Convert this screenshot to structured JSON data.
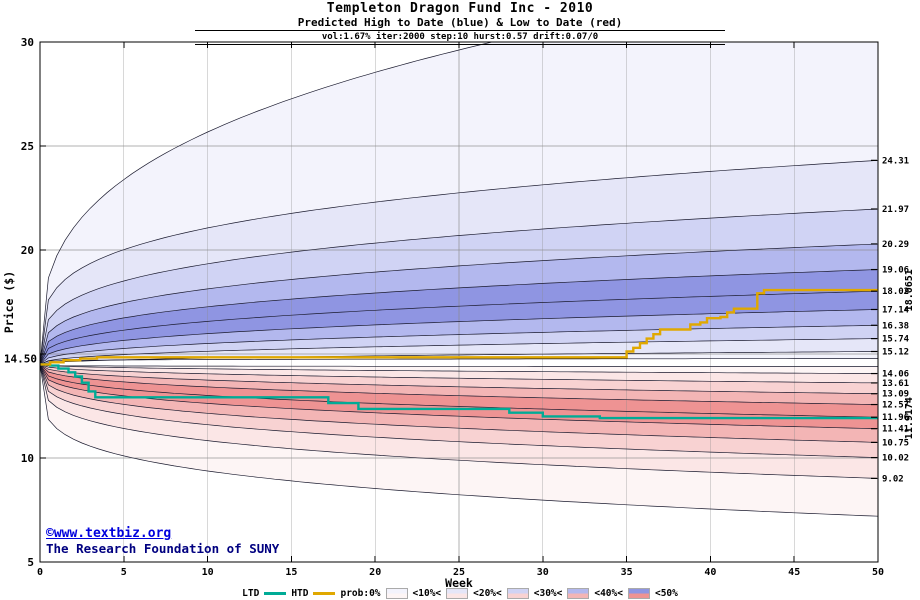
{
  "header": {
    "title": "Templeton Dragon Fund Inc - 2010",
    "subtitle": "Predicted High to Date (blue) &  Low to Date (red)",
    "params": "vol:1.67% iter:2000 step:10 hurst:0.57 drift:0.07/0"
  },
  "watermark": {
    "line1": "©www.textbiz.org",
    "line2": "The Research Foundation of SUNY"
  },
  "legend": {
    "series": [
      {
        "label": "LTD",
        "color": "#00ab96"
      },
      {
        "label": "HTD",
        "color": "#e0a800"
      }
    ],
    "prob_labels": [
      "prob:0%",
      "<10%<",
      "<20%<",
      "<30%<",
      "<40%<",
      "<50%"
    ]
  },
  "chart_data": {
    "type": "area",
    "title": "Templeton Dragon Fund Inc - 2010",
    "subtitle": "Predicted High to Date (blue) &  Low to Date (red)",
    "params_line": "vol:1.67% iter:2000 step:10 hurst:0.57 drift:0.07/0",
    "xlabel": "Week",
    "ylabel": "Price ($)",
    "xlim": [
      0,
      50
    ],
    "ylim": [
      5,
      30
    ],
    "x_tick_labels": [
      0,
      5,
      10,
      15,
      20,
      25,
      30,
      35,
      40,
      45,
      50
    ],
    "x_gridlines": [
      5,
      10,
      15,
      20,
      25,
      30,
      35,
      40,
      45
    ],
    "y_tick_labels": [
      30,
      25,
      20,
      10,
      5
    ],
    "y_gridlines": [
      10,
      15,
      20,
      25
    ],
    "start_price": 14.5,
    "start_label": "14.50",
    "band_colors_blue": [
      "#f3f3fc",
      "#e5e6f8",
      "#d0d3f4",
      "#b3b8ee",
      "#8f95e2"
    ],
    "band_colors_red": [
      "#fdf5f5",
      "#fbe6e6",
      "#f8d2d2",
      "#f3b5b5",
      "#ee9393"
    ],
    "line_color": "#1a1a2e",
    "high_fan": {
      "side": "high-to-date",
      "ends": [
        14.78,
        15.12,
        15.74,
        16.38,
        17.14,
        18.02,
        19.06,
        20.29,
        21.97,
        24.31,
        33.5
      ],
      "exps": [
        0.12,
        0.45,
        0.42,
        0.39,
        0.36,
        0.33,
        0.31,
        0.29,
        0.27,
        0.25,
        0.33
      ],
      "labels": [
        "15.12",
        "15.74",
        "16.38",
        "17.14",
        "18.02",
        "19.06",
        "20.29",
        "21.97",
        "24.31"
      ]
    },
    "low_fan": {
      "side": "low-to-date",
      "ends": [
        14.4,
        14.06,
        13.61,
        13.09,
        12.57,
        11.96,
        11.41,
        10.75,
        10.02,
        9.02,
        7.2
      ],
      "exps": [
        0.12,
        0.45,
        0.42,
        0.39,
        0.36,
        0.33,
        0.31,
        0.29,
        0.27,
        0.25,
        0.22
      ],
      "labels": [
        "14.06",
        "13.61",
        "13.09",
        "12.57",
        "11.96",
        "11.41",
        "10.75",
        "10.02",
        "9.02"
      ]
    },
    "htd_line": {
      "name": "HTD",
      "color": "#e0a800",
      "final_value": 18.0651,
      "final_label": "18.0651",
      "final_label_color": "#cc7a00",
      "points": [
        [
          0,
          14.5
        ],
        [
          0.6,
          14.6
        ],
        [
          1.4,
          14.7
        ],
        [
          2.4,
          14.78
        ],
        [
          3.4,
          14.84
        ],
        [
          34.6,
          14.84
        ],
        [
          35.0,
          15.12
        ],
        [
          35.4,
          15.3
        ],
        [
          35.8,
          15.52
        ],
        [
          36.2,
          15.74
        ],
        [
          36.6,
          15.95
        ],
        [
          37.0,
          16.18
        ],
        [
          38.4,
          16.18
        ],
        [
          38.8,
          16.42
        ],
        [
          39.4,
          16.52
        ],
        [
          39.8,
          16.72
        ],
        [
          40.6,
          16.78
        ],
        [
          41.0,
          17.0
        ],
        [
          41.4,
          17.18
        ],
        [
          42.4,
          17.18
        ],
        [
          42.8,
          17.92
        ],
        [
          43.2,
          18.07
        ],
        [
          50,
          18.07
        ]
      ]
    },
    "ltd_line": {
      "name": "LTD",
      "color": "#00ab96",
      "final_value": 11.9174,
      "final_label": "11.9174",
      "final_label_color": "#00a020",
      "points": [
        [
          0,
          14.5
        ],
        [
          0.6,
          14.44
        ],
        [
          1.1,
          14.3
        ],
        [
          1.7,
          14.12
        ],
        [
          2.1,
          13.92
        ],
        [
          2.5,
          13.62
        ],
        [
          2.9,
          13.2
        ],
        [
          3.3,
          12.92
        ],
        [
          16.8,
          12.92
        ],
        [
          17.2,
          12.64
        ],
        [
          18.6,
          12.64
        ],
        [
          19.0,
          12.36
        ],
        [
          27.6,
          12.36
        ],
        [
          28.0,
          12.18
        ],
        [
          29.6,
          12.18
        ],
        [
          30.0,
          12.0
        ],
        [
          33.0,
          12.0
        ],
        [
          33.4,
          11.92
        ],
        [
          50,
          11.92
        ]
      ]
    }
  }
}
